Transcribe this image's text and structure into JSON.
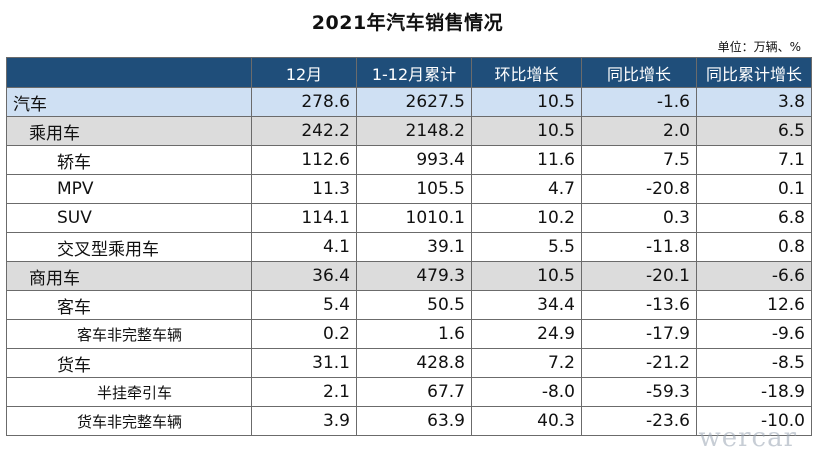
{
  "title": "2021年汽车销售情况",
  "unit": "单位：万辆、%",
  "headers": [
    "",
    "12月",
    "1-12月累计",
    "环比增长",
    "同比增长",
    "同比累计增长"
  ],
  "rows": [
    {
      "level": 0,
      "name": "汽车",
      "values": [
        "278.6",
        "2627.5",
        "10.5",
        "-1.6",
        "3.8"
      ]
    },
    {
      "level": 1,
      "name": "乘用车",
      "values": [
        "242.2",
        "2148.2",
        "10.5",
        "2.0",
        "6.5"
      ]
    },
    {
      "level": 2,
      "name": "轿车",
      "values": [
        "112.6",
        "993.4",
        "11.6",
        "7.5",
        "7.1"
      ]
    },
    {
      "level": 2,
      "name": "MPV",
      "values": [
        "11.3",
        "105.5",
        "4.7",
        "-20.8",
        "0.1"
      ]
    },
    {
      "level": 2,
      "name": "SUV",
      "values": [
        "114.1",
        "1010.1",
        "10.2",
        "0.3",
        "6.8"
      ]
    },
    {
      "level": 2,
      "name": "交叉型乘用车",
      "values": [
        "4.1",
        "39.1",
        "5.5",
        "-11.8",
        "0.8"
      ]
    },
    {
      "level": 1,
      "name": "商用车",
      "values": [
        "36.4",
        "479.3",
        "10.5",
        "-20.1",
        "-6.6"
      ]
    },
    {
      "level": 2,
      "name": "客车",
      "values": [
        "5.4",
        "50.5",
        "34.4",
        "-13.6",
        "12.6"
      ]
    },
    {
      "level": 3,
      "name": "客车非完整车辆",
      "values": [
        "0.2",
        "1.6",
        "24.9",
        "-17.9",
        "-9.6"
      ]
    },
    {
      "level": 2,
      "name": "货车",
      "values": [
        "31.1",
        "428.8",
        "7.2",
        "-21.2",
        "-8.5"
      ]
    },
    {
      "level": 4,
      "name": "半挂牵引车",
      "values": [
        "2.1",
        "67.7",
        "-8.0",
        "-59.3",
        "-18.9"
      ]
    },
    {
      "level": 3,
      "name": "货车非完整车辆",
      "values": [
        "3.9",
        "63.9",
        "40.3",
        "-23.6",
        "-10.0"
      ]
    }
  ],
  "watermark": "wercar",
  "colors": {
    "header_bg": "#1f4e7a",
    "level0_bg": "#cfe0f3",
    "level1_bg": "#dcdcdc"
  }
}
